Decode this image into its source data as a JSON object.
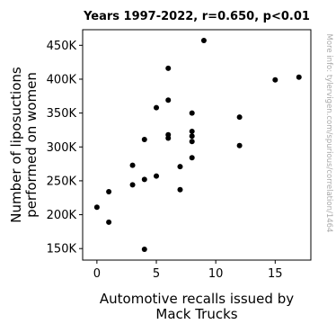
{
  "chart_data": {
    "type": "scatter",
    "title": "Years 1997-2022, r=0.650, p<0.01",
    "xlabel": [
      "Automotive recalls issued by",
      "Mack Trucks"
    ],
    "ylabel": [
      "Number of liposuctions",
      "performed on women"
    ],
    "side_note": "More info: tylervigen.com/spurious/correlation/1464",
    "xlim": [
      -1.2,
      18.0
    ],
    "ylim": [
      133000,
      473000
    ],
    "x_ticks": [
      0,
      5,
      10,
      15
    ],
    "x_tick_labels": [
      "0",
      "5",
      "10",
      "15"
    ],
    "y_ticks": [
      150000,
      200000,
      250000,
      300000,
      350000,
      400000,
      450000
    ],
    "y_tick_labels": [
      "150K",
      "200K",
      "250K",
      "300K",
      "350K",
      "400K",
      "450K"
    ],
    "grid": false,
    "marker_color": "#000000",
    "points": [
      {
        "x": 0,
        "y": 211000
      },
      {
        "x": 1,
        "y": 234000
      },
      {
        "x": 1,
        "y": 189000
      },
      {
        "x": 3,
        "y": 273000
      },
      {
        "x": 3,
        "y": 244000
      },
      {
        "x": 4,
        "y": 311000
      },
      {
        "x": 4,
        "y": 252000
      },
      {
        "x": 4,
        "y": 149000
      },
      {
        "x": 5,
        "y": 358000
      },
      {
        "x": 5,
        "y": 257000
      },
      {
        "x": 6,
        "y": 416000
      },
      {
        "x": 6,
        "y": 369000
      },
      {
        "x": 6,
        "y": 318000
      },
      {
        "x": 6,
        "y": 313000
      },
      {
        "x": 7,
        "y": 271000
      },
      {
        "x": 7,
        "y": 237000
      },
      {
        "x": 8,
        "y": 350000
      },
      {
        "x": 8,
        "y": 323000
      },
      {
        "x": 8,
        "y": 316000
      },
      {
        "x": 8,
        "y": 308000
      },
      {
        "x": 8,
        "y": 284000
      },
      {
        "x": 9,
        "y": 457000
      },
      {
        "x": 12,
        "y": 344000
      },
      {
        "x": 12,
        "y": 302000
      },
      {
        "x": 15,
        "y": 399000
      },
      {
        "x": 17,
        "y": 403000
      }
    ]
  }
}
